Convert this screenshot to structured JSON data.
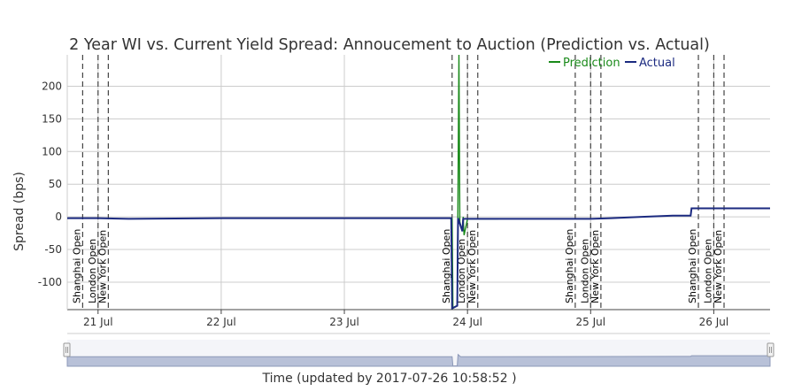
{
  "chart_data": {
    "type": "line",
    "title": "2 Year WI vs. Current Yield Spread: Annoucement to Auction (Prediction vs. Actual)",
    "xlabel": "Time (updated by 2017-07-26 10:58:52 )",
    "ylabel": "Spread (bps)",
    "ylim": [
      -142,
      248
    ],
    "yticks": [
      200,
      150,
      100,
      50,
      0,
      -50,
      -100
    ],
    "xlim": [
      "2017-07-20 18:00",
      "2017-07-26 10:58"
    ],
    "xticks": [
      {
        "x": "2017-07-21 00:00",
        "label": "21 Jul"
      },
      {
        "x": "2017-07-22 00:00",
        "label": "22 Jul"
      },
      {
        "x": "2017-07-23 00:00",
        "label": "23 Jul"
      },
      {
        "x": "2017-07-24 00:00",
        "label": "24 Jul"
      },
      {
        "x": "2017-07-25 00:00",
        "label": "25 Jul"
      },
      {
        "x": "2017-07-26 00:00",
        "label": "26 Jul"
      }
    ],
    "grid": true,
    "legend": {
      "position": "top-right",
      "entries": [
        "Prediction",
        "Actual"
      ]
    },
    "colors": {
      "prediction": "#1a8a1a",
      "actual": "#1b2a80"
    },
    "events": [
      {
        "x": "2017-07-20 21:00",
        "label": "Shanghai Open"
      },
      {
        "x": "2017-07-21 00:00",
        "label": "London Open"
      },
      {
        "x": "2017-07-21 02:00",
        "label": "New York Open"
      },
      {
        "x": "2017-07-23 21:00",
        "label": "Shanghai Open"
      },
      {
        "x": "2017-07-24 00:00",
        "label": "London Open"
      },
      {
        "x": "2017-07-24 02:00",
        "label": "New York Open"
      },
      {
        "x": "2017-07-24 21:00",
        "label": "Shanghai Open"
      },
      {
        "x": "2017-07-25 00:00",
        "label": "London Open"
      },
      {
        "x": "2017-07-25 02:00",
        "label": "New York Open"
      },
      {
        "x": "2017-07-25 21:00",
        "label": "Shanghai Open"
      },
      {
        "x": "2017-07-26 00:00",
        "label": "London Open"
      },
      {
        "x": "2017-07-26 02:00",
        "label": "New York Open"
      }
    ],
    "series": [
      {
        "name": "Prediction",
        "points": [
          [
            "2017-07-23 21:00",
            -2
          ],
          [
            "2017-07-23 21:10",
            -140
          ],
          [
            "2017-07-23 22:00",
            -136
          ],
          [
            "2017-07-23 22:20",
            248
          ],
          [
            "2017-07-23 22:30",
            -8
          ],
          [
            "2017-07-23 23:00",
            -22
          ],
          [
            "2017-07-23 23:10",
            0
          ],
          [
            "2017-07-23 23:20",
            -28
          ],
          [
            "2017-07-24 00:00",
            -3
          ],
          [
            "2017-07-24 06:00",
            -3
          ]
        ]
      },
      {
        "name": "Actual",
        "points": [
          [
            "2017-07-20 18:00",
            -2
          ],
          [
            "2017-07-21 00:00",
            -2
          ],
          [
            "2017-07-21 06:00",
            -3
          ],
          [
            "2017-07-22 00:00",
            -2
          ],
          [
            "2017-07-23 00:00",
            -2
          ],
          [
            "2017-07-23 20:50",
            -2
          ],
          [
            "2017-07-23 21:00",
            -140
          ],
          [
            "2017-07-23 22:00",
            -136
          ],
          [
            "2017-07-23 22:10",
            -2
          ],
          [
            "2017-07-23 23:00",
            -22
          ],
          [
            "2017-07-23 23:10",
            -3
          ],
          [
            "2017-07-24 00:00",
            -3
          ],
          [
            "2017-07-24 12:00",
            -3
          ],
          [
            "2017-07-25 00:00",
            -3
          ],
          [
            "2017-07-25 04:00",
            -2
          ],
          [
            "2017-07-25 10:00",
            0
          ],
          [
            "2017-07-25 16:00",
            2
          ],
          [
            "2017-07-25 19:30",
            2
          ],
          [
            "2017-07-25 19:40",
            13
          ],
          [
            "2017-07-26 10:58",
            13
          ]
        ]
      }
    ],
    "navigator": {
      "points": [
        [
          "2017-07-20 18:00",
          -2
        ],
        [
          "2017-07-23 21:00",
          -2
        ],
        [
          "2017-07-23 21:10",
          -140
        ],
        [
          "2017-07-23 22:00",
          -136
        ],
        [
          "2017-07-23 22:10",
          30
        ],
        [
          "2017-07-23 22:40",
          -2
        ],
        [
          "2017-07-24 00:00",
          -3
        ],
        [
          "2017-07-25 19:30",
          2
        ],
        [
          "2017-07-25 19:40",
          13
        ],
        [
          "2017-07-26 10:58",
          13
        ]
      ]
    }
  }
}
